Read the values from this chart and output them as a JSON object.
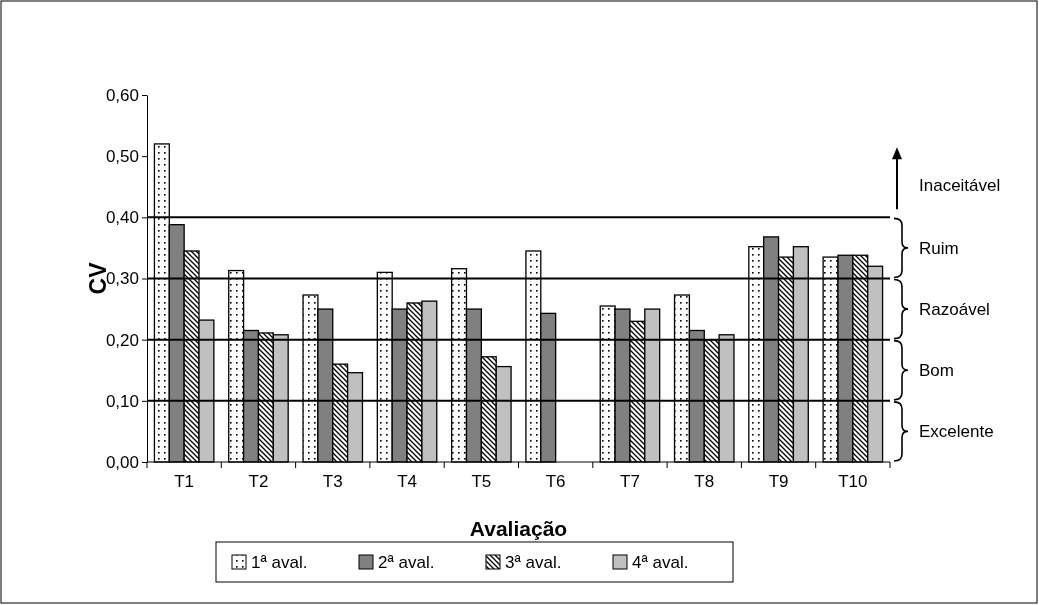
{
  "chart_data": {
    "type": "bar",
    "xlabel": "Avaliação",
    "ylabel": "CV",
    "categories": [
      "T1",
      "T2",
      "T3",
      "T4",
      "T5",
      "T6",
      "T7",
      "T8",
      "T9",
      "T10"
    ],
    "series": [
      {
        "name": "1ª aval.",
        "color": "#ffffff",
        "values": [
          0.52,
          0.313,
          0.273,
          0.31,
          0.316,
          0.345,
          0.255,
          0.273,
          0.352,
          0.335
        ]
      },
      {
        "name": "2ª aval.",
        "color": "#808080",
        "values": [
          0.388,
          0.215,
          0.25,
          0.25,
          0.25,
          0.243,
          0.25,
          0.215,
          0.368,
          0.338
        ]
      },
      {
        "name": "3ª aval.",
        "color": "#ffffff",
        "values": [
          0.345,
          0.211,
          0.16,
          0.26,
          0.172,
          null,
          0.23,
          0.2,
          0.335,
          0.338
        ]
      },
      {
        "name": "4ª aval.",
        "color": "#c0c0c0",
        "values": [
          0.232,
          0.208,
          0.146,
          0.263,
          0.156,
          null,
          0.25,
          0.208,
          0.352,
          0.32
        ]
      }
    ],
    "ylim": [
      0,
      0.6
    ],
    "yticks": [
      {
        "value": 0,
        "label": "0,00"
      },
      {
        "value": 0.1,
        "label": "0,10"
      },
      {
        "value": 0.2,
        "label": "0,20"
      },
      {
        "value": 0.3,
        "label": "0,30"
      },
      {
        "value": 0.4,
        "label": "0,40"
      },
      {
        "value": 0.5,
        "label": "0,50"
      },
      {
        "value": 0.6,
        "label": "0,60"
      }
    ],
    "ref_lines": [
      {
        "axis": "y",
        "value": 0.1
      },
      {
        "axis": "y",
        "value": 0.2
      },
      {
        "axis": "y",
        "value": 0.3
      },
      {
        "axis": "y",
        "value": 0.4
      }
    ],
    "annotations": [
      "Excelente",
      "Bom",
      "Razoável",
      "Ruim",
      "Inaceitável"
    ],
    "grid": false,
    "legend": "bottom"
  }
}
